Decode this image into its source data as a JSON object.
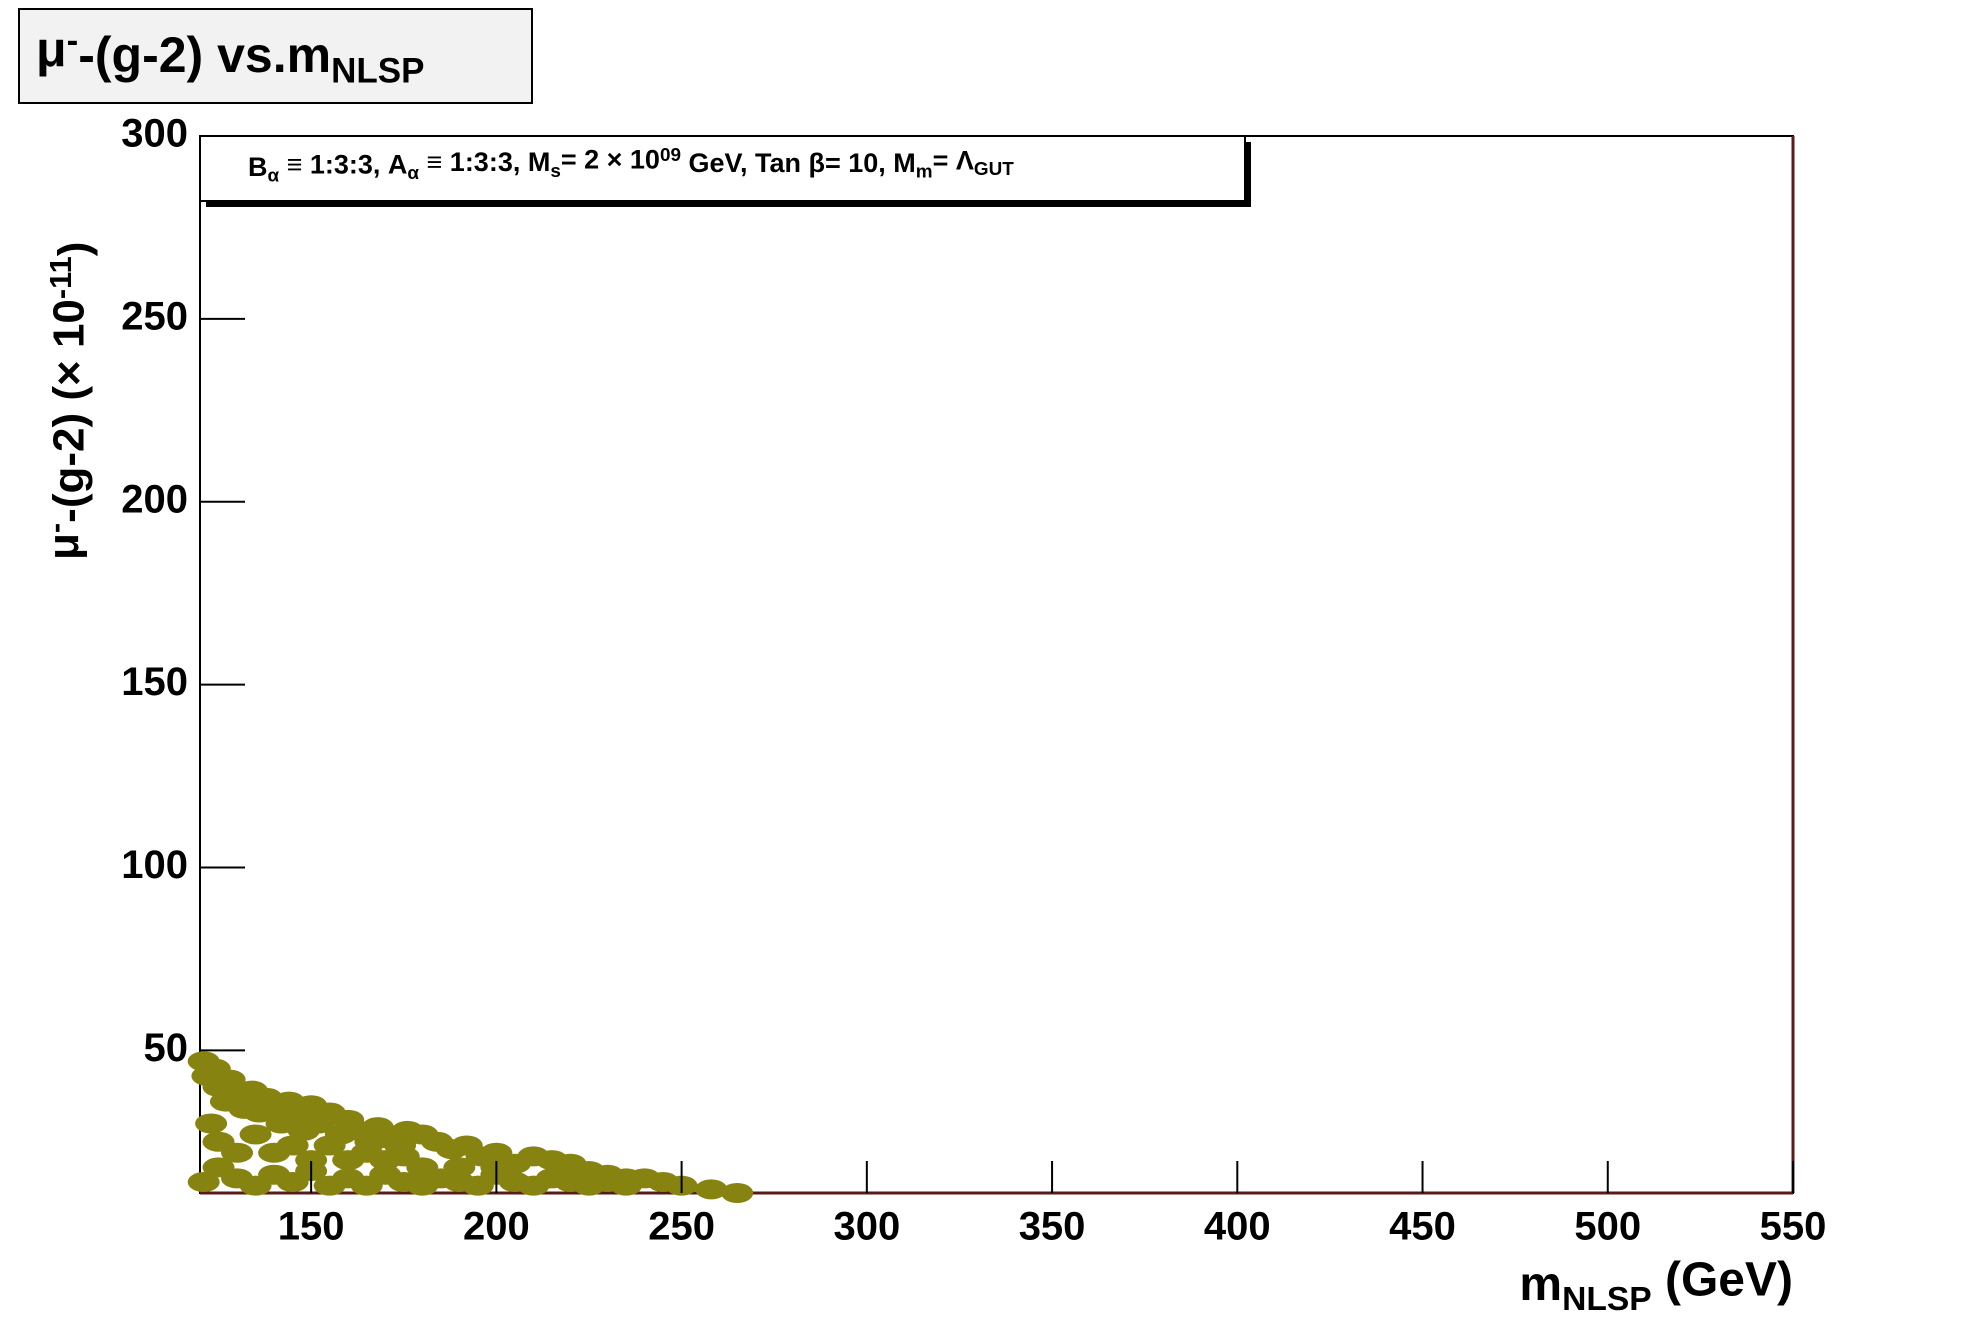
{
  "chart_data": {
    "type": "scatter",
    "title": [
      {
        "text": "μ",
        "pos": ""
      },
      {
        "text": "-",
        "pos": "sup"
      },
      {
        "text": "-(g-2) vs.m",
        "pos": ""
      },
      {
        "text": "NLSP",
        "pos": "sub"
      }
    ],
    "annotation": [
      {
        "text": "B",
        "pos": ""
      },
      {
        "text": "α",
        "pos": "sub"
      },
      {
        "text": " ≡ 1:3:3, A",
        "pos": ""
      },
      {
        "text": "α",
        "pos": "sub"
      },
      {
        "text": " ≡ 1:3:3, M",
        "pos": ""
      },
      {
        "text": "s",
        "pos": "sub"
      },
      {
        "text": "= 2 × 10",
        "pos": ""
      },
      {
        "text": "09",
        "pos": "sup"
      },
      {
        "text": " GeV, Tan β= 10, M",
        "pos": ""
      },
      {
        "text": "m",
        "pos": "sub"
      },
      {
        "text": "= Λ",
        "pos": ""
      },
      {
        "text": "GUT",
        "pos": "sub"
      }
    ],
    "x_label": [
      {
        "text": "m",
        "pos": ""
      },
      {
        "text": "NLSP",
        "pos": "sub"
      },
      {
        "text": "   (GeV)",
        "pos": ""
      }
    ],
    "y_label": [
      {
        "text": "μ",
        "pos": ""
      },
      {
        "text": "-",
        "pos": "sup"
      },
      {
        "text": "-(g-2)   (× 10",
        "pos": ""
      },
      {
        "text": "-11",
        "pos": "sup"
      },
      {
        "text": ")",
        "pos": ""
      }
    ],
    "xlim": [
      120,
      550
    ],
    "ylim": [
      11,
      300
    ],
    "xticks": [
      150,
      200,
      250,
      300,
      350,
      400,
      450,
      500,
      550
    ],
    "yticks": [
      50,
      100,
      150,
      200,
      250,
      300
    ],
    "color": "#878311",
    "x": [
      121,
      122,
      124,
      125,
      127,
      128,
      130,
      132,
      134,
      136,
      138,
      140,
      142,
      144,
      146,
      148,
      150,
      152,
      155,
      158,
      160,
      163,
      166,
      168,
      170,
      174,
      176,
      180,
      184,
      188,
      192,
      196,
      200,
      205,
      210,
      215,
      220,
      225,
      230,
      235,
      240,
      245,
      250,
      258,
      265,
      121,
      125,
      130,
      135,
      140,
      145,
      150,
      155,
      160,
      165,
      170,
      175,
      180,
      185,
      190,
      195,
      200,
      205,
      210,
      215,
      220,
      225,
      230,
      235,
      125,
      130,
      140,
      150,
      160,
      170,
      180,
      190,
      200,
      123,
      135,
      145,
      155,
      165,
      175
    ],
    "y": [
      47,
      43,
      45,
      40,
      36,
      42,
      38,
      34,
      39,
      33,
      37,
      35,
      30,
      36,
      32,
      28,
      35,
      30,
      33,
      27,
      31,
      28,
      25,
      29,
      26,
      24,
      28,
      27,
      25,
      23,
      24,
      21,
      22,
      19,
      21,
      20,
      19,
      17,
      16,
      15,
      15,
      14,
      13,
      12,
      11,
      14,
      18,
      15,
      13,
      16,
      14,
      17,
      13,
      15,
      13,
      16,
      14,
      13,
      15,
      14,
      13,
      16,
      14,
      13,
      15,
      14,
      13,
      14,
      13,
      25,
      22,
      22,
      20,
      20,
      20,
      18,
      18,
      18,
      30,
      27,
      24,
      24,
      22,
      21
    ]
  }
}
